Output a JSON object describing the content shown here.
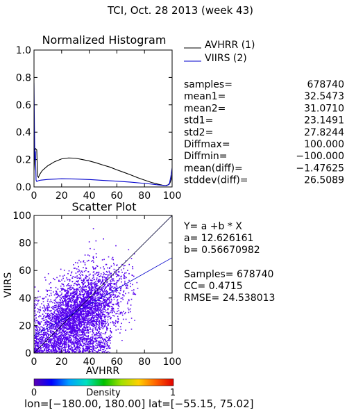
{
  "title": "TCI,  Oct. 28 2013 (week 43)",
  "colors": {
    "avhrr": "#000000",
    "viirs": "#0000cc",
    "scatter": "#5500ee",
    "fit_line": "#0000cc",
    "one_to_one": "#000033"
  },
  "chart_data": [
    {
      "type": "line",
      "title": "Normalized Histogram",
      "xlim": [
        0,
        100
      ],
      "ylim": [
        0,
        1.0
      ],
      "xticks": [
        "0",
        "20",
        "40",
        "60",
        "80",
        "100"
      ],
      "yticks": [
        "0.0",
        "0.2",
        "0.4",
        "0.6",
        "0.8",
        "1.0"
      ],
      "legend_position": "top-right",
      "series": [
        {
          "name": "AVHRR (1)",
          "x": [
            0,
            0.7,
            1.2,
            2,
            2.6,
            3.2,
            4,
            6,
            10,
            15,
            20,
            25,
            30,
            35,
            40,
            45,
            50,
            55,
            60,
            65,
            70,
            75,
            80,
            85,
            90,
            93,
            95,
            97,
            98.5,
            99.5,
            100
          ],
          "y": [
            0.12,
            0.27,
            0.28,
            0.27,
            0.08,
            0.07,
            0.09,
            0.12,
            0.155,
            0.185,
            0.205,
            0.212,
            0.21,
            0.2,
            0.19,
            0.176,
            0.16,
            0.145,
            0.125,
            0.107,
            0.088,
            0.068,
            0.05,
            0.033,
            0.02,
            0.013,
            0.01,
            0.015,
            0.03,
            0.06,
            0.09
          ]
        },
        {
          "name": "VIIRS (2)",
          "x": [
            0,
            0.3,
            0.6,
            1,
            1.5,
            2,
            3,
            5,
            10,
            20,
            30,
            40,
            50,
            60,
            70,
            80,
            85,
            90,
            93,
            96,
            98,
            99.3,
            100
          ],
          "y": [
            0.76,
            0.45,
            0.2,
            0.26,
            0.05,
            0.04,
            0.045,
            0.05,
            0.055,
            0.06,
            0.058,
            0.054,
            0.048,
            0.042,
            0.035,
            0.026,
            0.021,
            0.015,
            0.012,
            0.01,
            0.02,
            0.09,
            0.14
          ]
        }
      ]
    },
    {
      "type": "scatter",
      "title": "Scatter Plot",
      "xlabel": "AVHRR",
      "ylabel": "VIIRS",
      "xlim": [
        0,
        100
      ],
      "ylim": [
        0,
        100
      ],
      "xticks": [
        "0",
        "20",
        "40",
        "60",
        "80",
        "100"
      ],
      "yticks": [
        "0",
        "20",
        "40",
        "60",
        "80",
        "100"
      ],
      "fit": {
        "a": 12.626161,
        "b": 0.56670982
      },
      "point_cloud": {
        "x_center": 32,
        "y_center": 30,
        "x_spread": 16,
        "y_spread": 15,
        "correlation": 0.47,
        "n_drawn": 3800
      }
    }
  ],
  "stats": [
    {
      "label": "samples=",
      "value": "678740"
    },
    {
      "label": "mean1=",
      "value": "32.5473"
    },
    {
      "label": "mean2=",
      "value": "31.0710"
    },
    {
      "label": "std1=",
      "value": "23.1491"
    },
    {
      "label": "std2=",
      "value": "27.8244"
    },
    {
      "label": "Diffmax=",
      "value": "100.000"
    },
    {
      "label": "Diffmin=",
      "value": "−100.000"
    },
    {
      "label": "mean(diff)=",
      "value": "−1.47625"
    },
    {
      "label": "stddev(diff)=",
      "value": "26.5089"
    }
  ],
  "regression": {
    "equation": "Y= a +b * X",
    "a_text": "a= 12.626161",
    "b_text": "b= 0.56670982",
    "samples_text": "Samples= 678740",
    "cc_text": "CC=  0.4715",
    "rmse_text": "RMSE= 24.538013"
  },
  "colorbar": {
    "label": "Density",
    "min_label": "0",
    "max_label": "1",
    "stops": [
      "#5a00b4",
      "#0000ff",
      "#00a0ff",
      "#00e0c0",
      "#00c000",
      "#a0e000",
      "#ffd000",
      "#ff6000",
      "#e00000"
    ]
  },
  "footer": "lon=[−180.00, 180.00] lat=[−55.15, 75.02]"
}
